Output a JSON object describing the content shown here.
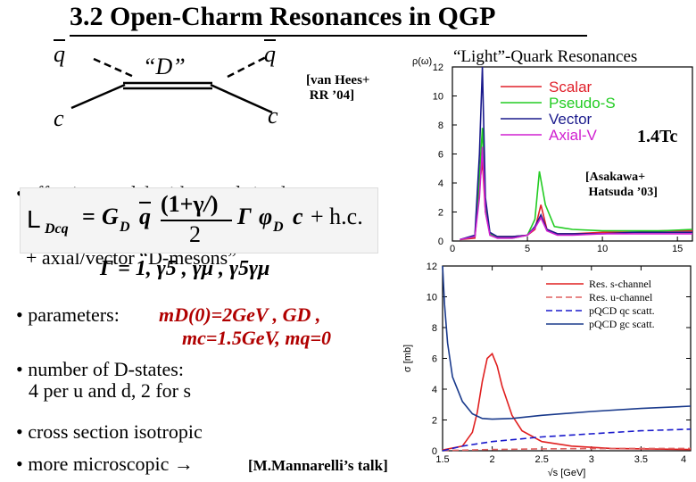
{
  "slide": {
    "title": "3.2 Open-Charm Resonances in QGP",
    "diagram": {
      "q_left": "q",
      "q_right": "q",
      "c_left": "c",
      "c_right": "c",
      "meson_label": "“D”",
      "reference": [
        "[van Hees+",
        " RR ’04]"
      ]
    },
    "bullet1": [
      "• effective model with pseudo/scalar",
      "  + axial/vector “D-mesons”"
    ],
    "lagrangian": {
      "lhs": "L",
      "lhs_sub": "Dcq",
      "eq": "=",
      "g": "G",
      "g_sub": "D",
      "qbar": "q",
      "frac_num": "(1+γ",
      "frac_num_sub": "/",
      "frac_num_end": ")",
      "frac_den": "2",
      "gamma": "Γ",
      "phi": "φ",
      "phi_sub": "D",
      "c": "c",
      "hc": "+ h.c."
    },
    "gamma_line": "Γ = 1, γ5 , γμ , γ5γμ",
    "bullet_params": {
      "label": "• parameters:",
      "m_d": "mD(0)=2GeV , GD ,",
      "m_c": "mc=1.5GeV, mq=0"
    },
    "bullet_states": [
      "• number of  D-states:",
      "4 per u and d, 2 for s"
    ],
    "bullet_iso": "• cross section isotropic",
    "bullet_micro": "• more microscopic →",
    "bullet_micro_ref": "[M.Mannarelli’s talk]"
  },
  "top_chart_header": "“Light”-Quark Resonances",
  "top_chart_temp": "1.4Tc",
  "top_chart_ref": [
    "[Asakawa+",
    " Hatsuda ’03]"
  ],
  "colors": {
    "scalar": "#e0202a",
    "pseudo_s": "#22cc22",
    "vector": "#1a1a8c",
    "axial_v": "#d020d0",
    "res_s": "#e02020",
    "res_u": "#e06060",
    "pqcd_qc": "#1a1acc",
    "pqcd_gc": "#1a3a8c"
  },
  "chart_data": [
    {
      "type": "line",
      "title": "“Light”-Quark Resonances",
      "ylabel": "ρ(ω)",
      "xlabel": "",
      "xlim": [
        0,
        16
      ],
      "ylim": [
        0,
        12
      ],
      "xticks": [
        "0",
        "5",
        "10",
        "15"
      ],
      "yticks": [
        "0",
        "2",
        "4",
        "6",
        "8",
        "10",
        "12"
      ],
      "legend": [
        "Scalar",
        "Pseudo-S",
        "Vector",
        "Axial-V"
      ],
      "series": [
        {
          "name": "Scalar",
          "x": [
            0.5,
            1.5,
            1.8,
            2.0,
            2.2,
            2.5,
            3,
            4,
            5,
            5.5,
            5.9,
            6.3,
            7,
            8,
            10,
            12,
            14,
            16
          ],
          "y": [
            0.1,
            0.2,
            3.8,
            5.5,
            2.0,
            0.5,
            0.3,
            0.3,
            0.4,
            0.8,
            2.5,
            0.8,
            0.5,
            0.5,
            0.6,
            0.6,
            0.7,
            0.7
          ]
        },
        {
          "name": "Pseudo-S",
          "x": [
            0.5,
            1.5,
            1.8,
            2.0,
            2.2,
            2.5,
            3,
            4,
            5,
            5.5,
            5.8,
            6.2,
            6.8,
            8,
            10,
            12,
            14,
            16
          ],
          "y": [
            0.1,
            0.3,
            4.5,
            7.8,
            2.5,
            0.5,
            0.2,
            0.2,
            0.4,
            1.5,
            4.8,
            2.5,
            1.0,
            0.8,
            0.7,
            0.7,
            0.7,
            0.8
          ]
        },
        {
          "name": "Vector",
          "x": [
            0.5,
            1.5,
            1.8,
            2.0,
            2.2,
            2.5,
            3,
            4,
            5,
            5.5,
            5.9,
            6.3,
            7,
            8,
            10,
            12,
            14,
            16
          ],
          "y": [
            0.1,
            0.4,
            6.0,
            12.0,
            3.0,
            0.6,
            0.3,
            0.3,
            0.4,
            1.0,
            1.8,
            0.8,
            0.5,
            0.5,
            0.5,
            0.6,
            0.6,
            0.6
          ]
        },
        {
          "name": "Axial-V",
          "x": [
            0.5,
            1.5,
            1.8,
            2.0,
            2.2,
            2.5,
            3,
            4,
            5,
            5.5,
            5.9,
            6.3,
            7,
            8,
            10,
            12,
            14,
            16
          ],
          "y": [
            0.1,
            0.3,
            3.0,
            6.5,
            2.0,
            0.4,
            0.2,
            0.2,
            0.4,
            0.9,
            1.6,
            0.7,
            0.4,
            0.4,
            0.5,
            0.5,
            0.5,
            0.5
          ]
        }
      ]
    },
    {
      "type": "line",
      "title": "",
      "ylabel": "σ [mb]",
      "xlabel": "√s [GeV]",
      "xlim": [
        1.5,
        4.0
      ],
      "ylim": [
        0,
        12
      ],
      "xticks": [
        "1.5",
        "2",
        "2.5",
        "3",
        "3.5",
        "4"
      ],
      "yticks": [
        "0",
        "2",
        "4",
        "6",
        "8",
        "10",
        "12"
      ],
      "legend": [
        "Res. s-channel",
        "Res. u-channel",
        "pQCD qc scatt.",
        "pQCD gc scatt."
      ],
      "series": [
        {
          "name": "Res. s-channel",
          "x": [
            1.5,
            1.7,
            1.8,
            1.85,
            1.9,
            1.95,
            2.0,
            2.05,
            2.1,
            2.2,
            2.3,
            2.5,
            2.8,
            3.2,
            4.0
          ],
          "y": [
            0.05,
            0.3,
            1.2,
            2.5,
            4.5,
            6.0,
            6.3,
            5.5,
            4.2,
            2.3,
            1.3,
            0.6,
            0.3,
            0.15,
            0.08
          ]
        },
        {
          "name": "Res. u-channel",
          "x": [
            1.5,
            1.8,
            2.0,
            2.5,
            3.0,
            3.5,
            4.0
          ],
          "y": [
            0.02,
            0.05,
            0.08,
            0.12,
            0.14,
            0.15,
            0.15
          ]
        },
        {
          "name": "pQCD qc scatt.",
          "x": [
            1.5,
            1.7,
            2.0,
            2.5,
            3.0,
            3.5,
            4.0
          ],
          "y": [
            0.0,
            0.3,
            0.6,
            0.9,
            1.1,
            1.3,
            1.4
          ]
        },
        {
          "name": "pQCD gc scatt.",
          "x": [
            1.5,
            1.52,
            1.55,
            1.6,
            1.7,
            1.8,
            1.9,
            2.0,
            2.2,
            2.5,
            3.0,
            3.5,
            4.0
          ],
          "y": [
            12,
            9.5,
            7.0,
            4.8,
            3.2,
            2.4,
            2.1,
            2.05,
            2.1,
            2.3,
            2.55,
            2.75,
            2.9
          ]
        }
      ]
    }
  ]
}
